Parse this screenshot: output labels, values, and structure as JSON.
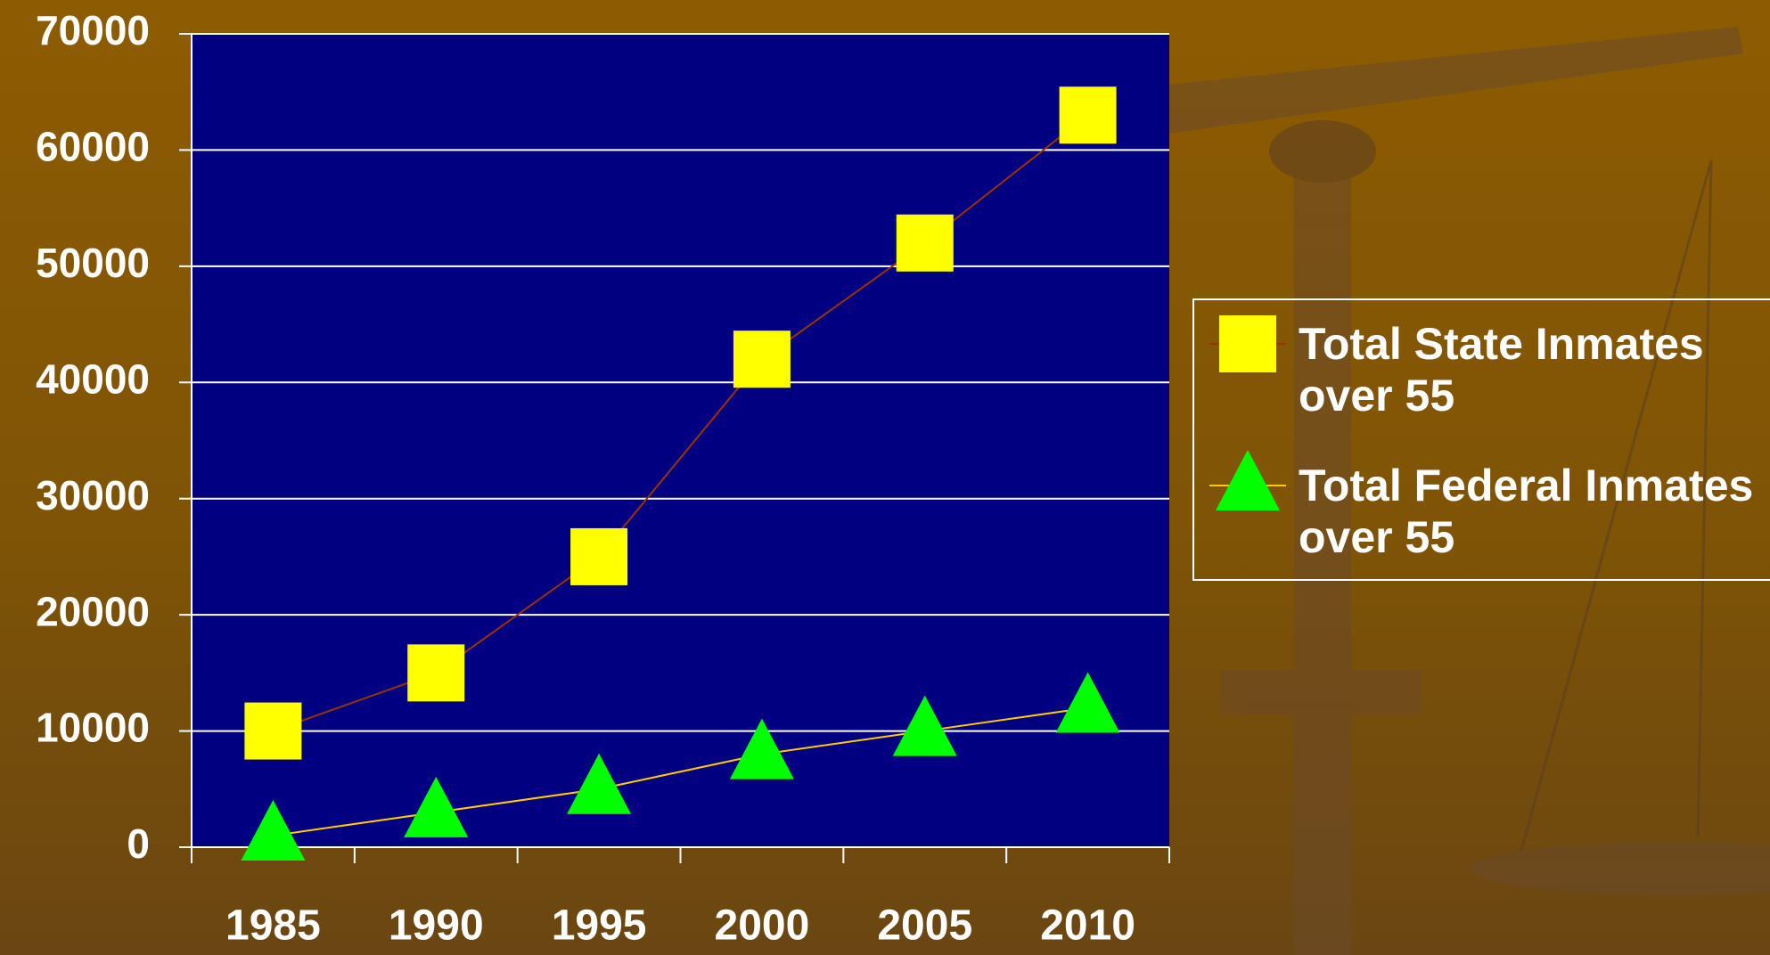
{
  "chart_data": {
    "type": "line",
    "categories": [
      "1985",
      "1990",
      "1995",
      "2000",
      "2005",
      "2010"
    ],
    "series": [
      {
        "name": "Total State Inmates over 55",
        "marker": "square",
        "marker_color": "#ffff00",
        "line_color": "#993300",
        "values": [
          10000,
          15000,
          25000,
          42000,
          52000,
          63000
        ]
      },
      {
        "name": "Total Federal Inmates over 55",
        "marker": "triangle",
        "marker_color": "#00ff00",
        "line_color": "#ffcc00",
        "values": [
          1000,
          3000,
          5000,
          8000,
          10000,
          12000
        ]
      }
    ],
    "ylim": [
      0,
      70000
    ],
    "yticks": [
      0,
      10000,
      20000,
      30000,
      40000,
      50000,
      60000,
      70000
    ],
    "grid": true,
    "plot_color": "#000080",
    "legend": "right"
  }
}
